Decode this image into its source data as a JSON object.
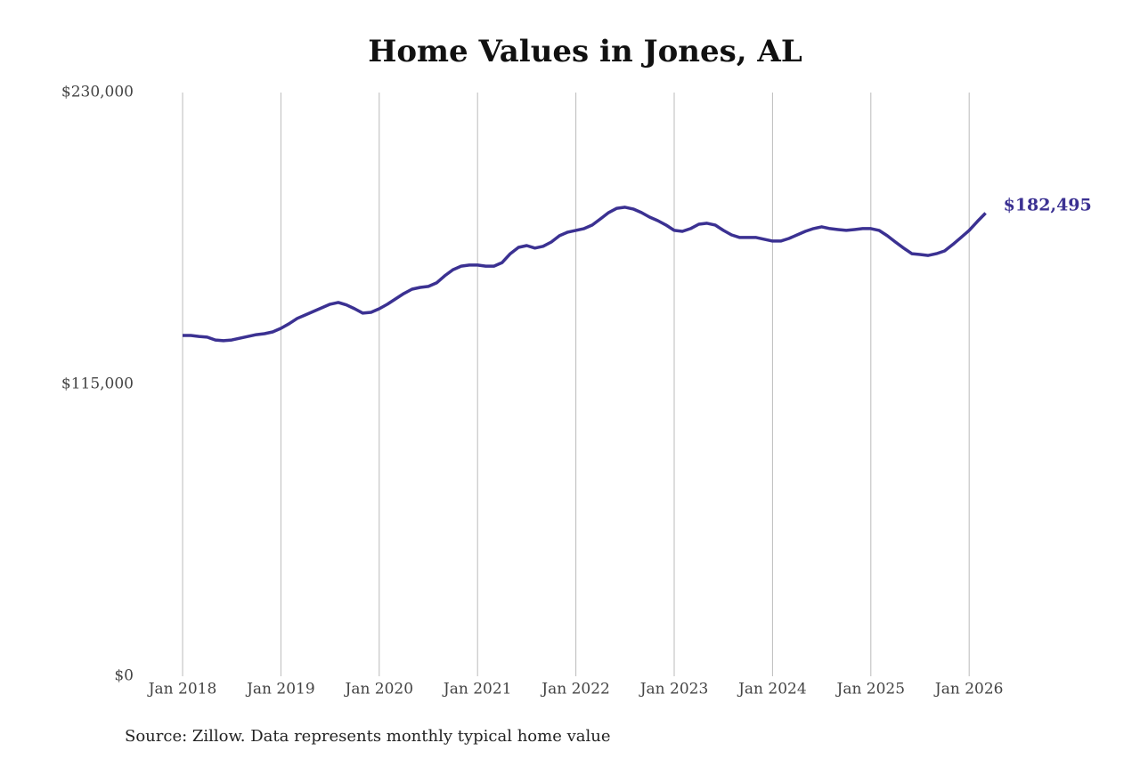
{
  "chart_data": {
    "type": "line",
    "title": "Home Values in Jones, AL",
    "source": "Source: Zillow. Data represents monthly typical home value",
    "x": [
      "2018-01",
      "2018-02",
      "2018-03",
      "2018-04",
      "2018-05",
      "2018-06",
      "2018-07",
      "2018-08",
      "2018-09",
      "2018-10",
      "2018-11",
      "2018-12",
      "2019-01",
      "2019-02",
      "2019-03",
      "2019-04",
      "2019-05",
      "2019-06",
      "2019-07",
      "2019-08",
      "2019-09",
      "2019-10",
      "2019-11",
      "2019-12",
      "2020-01",
      "2020-02",
      "2020-03",
      "2020-04",
      "2020-05",
      "2020-06",
      "2020-07",
      "2020-08",
      "2020-09",
      "2020-10",
      "2020-11",
      "2020-12",
      "2021-01",
      "2021-02",
      "2021-03",
      "2021-04",
      "2021-05",
      "2021-06",
      "2021-07",
      "2021-08",
      "2021-09",
      "2021-10",
      "2021-11",
      "2021-12",
      "2022-01",
      "2022-02",
      "2022-03",
      "2022-04",
      "2022-05",
      "2022-06",
      "2022-07",
      "2022-08",
      "2022-09",
      "2022-10",
      "2022-11",
      "2022-12",
      "2023-01",
      "2023-02",
      "2023-03",
      "2023-04",
      "2023-05",
      "2023-06",
      "2023-07",
      "2023-08",
      "2023-09",
      "2023-10",
      "2023-11",
      "2023-12",
      "2024-01",
      "2024-02",
      "2024-03",
      "2024-04",
      "2024-05",
      "2024-06",
      "2024-07",
      "2024-08",
      "2024-09",
      "2024-10",
      "2024-11",
      "2024-12",
      "2025-01",
      "2025-02",
      "2025-03",
      "2025-04",
      "2025-05",
      "2025-06",
      "2025-07",
      "2025-08",
      "2025-09",
      "2025-10",
      "2025-11",
      "2025-12",
      "2026-01",
      "2026-02",
      "2026-03"
    ],
    "series": [
      {
        "name": "Typical home value",
        "color": "#3b3192",
        "values": [
          134300,
          134300,
          133900,
          133600,
          132500,
          132200,
          132500,
          133200,
          133900,
          134600,
          135000,
          135700,
          137100,
          138900,
          141000,
          142400,
          143800,
          145200,
          146600,
          147300,
          146300,
          144800,
          143100,
          143400,
          144800,
          146600,
          148700,
          150800,
          152500,
          153200,
          153600,
          155000,
          157800,
          160200,
          161600,
          162000,
          162000,
          161600,
          161600,
          163000,
          166500,
          169000,
          169700,
          168700,
          169400,
          171100,
          173600,
          175000,
          175700,
          176400,
          177800,
          180200,
          182700,
          184400,
          184800,
          184100,
          182700,
          180900,
          179500,
          177800,
          175700,
          175300,
          176400,
          178100,
          178500,
          177800,
          175700,
          173900,
          172900,
          172900,
          172900,
          172200,
          171500,
          171500,
          172500,
          173900,
          175300,
          176400,
          177100,
          176400,
          176000,
          175700,
          176000,
          176400,
          176400,
          175700,
          173600,
          171100,
          168700,
          166500,
          166200,
          165800,
          166500,
          167600,
          170100,
          172900,
          175700,
          179200,
          182495
        ]
      }
    ],
    "annotations": [
      {
        "label": "$182,495"
      }
    ],
    "xlim": [
      "2018-01",
      "2026-03"
    ],
    "xticks": [
      {
        "value": "2018-01",
        "label": "Jan 2018"
      },
      {
        "value": "2019-01",
        "label": "Jan 2019"
      },
      {
        "value": "2020-01",
        "label": "Jan 2020"
      },
      {
        "value": "2021-01",
        "label": "Jan 2021"
      },
      {
        "value": "2022-01",
        "label": "Jan 2022"
      },
      {
        "value": "2023-01",
        "label": "Jan 2023"
      },
      {
        "value": "2024-01",
        "label": "Jan 2024"
      },
      {
        "value": "2025-01",
        "label": "Jan 2025"
      },
      {
        "value": "2026-01",
        "label": "Jan 2026"
      }
    ],
    "ylim": [
      0,
      230000
    ],
    "yticks": [
      {
        "value": 0,
        "label": "$0"
      },
      {
        "value": 115000,
        "label": "$115,000"
      },
      {
        "value": 230000,
        "label": "$230,000"
      }
    ],
    "grid": "x"
  }
}
